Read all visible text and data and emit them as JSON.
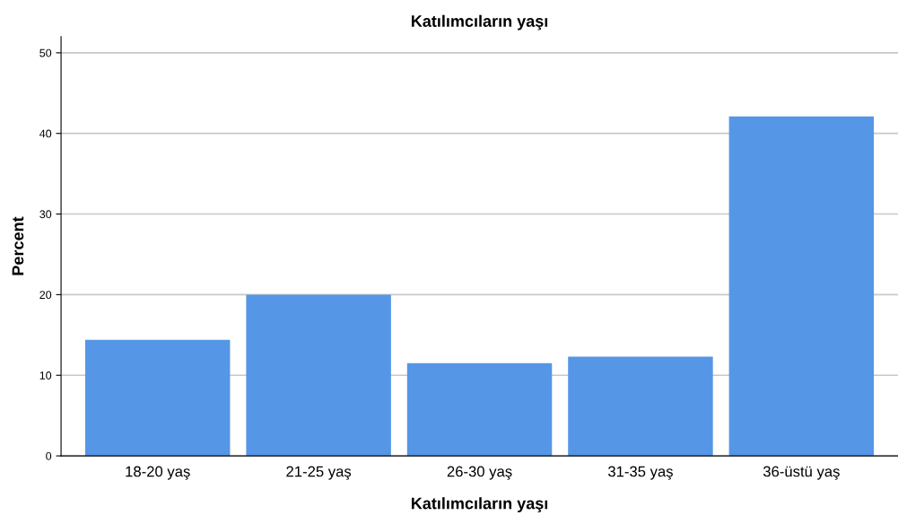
{
  "chart_data": {
    "type": "bar",
    "title": "Katılımcıların yaşı",
    "xlabel": "Katılımcıların yaşı",
    "ylabel": "Percent",
    "categories": [
      "18-20 yaş",
      "21-25 yaş",
      "26-30 yaş",
      "31-35 yaş",
      "36-üstü yaş"
    ],
    "values": [
      14.4,
      20.0,
      11.5,
      12.3,
      42.1
    ],
    "color": "#5596e6",
    "ylim": [
      0,
      52
    ],
    "yticks": [
      0,
      10,
      20,
      30,
      40,
      50
    ],
    "grid": "y"
  }
}
